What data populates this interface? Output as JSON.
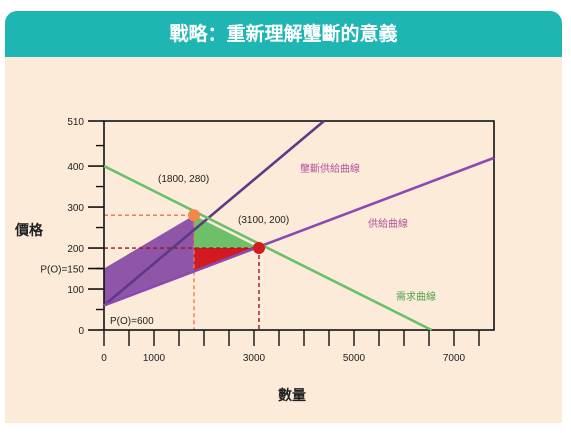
{
  "header": {
    "title": "戰略：重新理解壟斷的意義"
  },
  "chart_data": {
    "type": "line",
    "title": "",
    "xlabel": "數量",
    "ylabel": "價格",
    "xlim": [
      0,
      7800
    ],
    "ylim": [
      0,
      510
    ],
    "x_ticks": [
      0,
      1000,
      3000,
      5000,
      7000
    ],
    "y_ticks": [
      0,
      100,
      200,
      300,
      400,
      510
    ],
    "y_tick_labels": [
      {
        "value": 510,
        "label": "510"
      },
      {
        "value": 400,
        "label": "400"
      },
      {
        "value": 300,
        "label": "300"
      },
      {
        "value": 200,
        "label": "200"
      },
      {
        "value": 150,
        "label": "P(O)=150"
      },
      {
        "value": 100,
        "label": "100"
      },
      {
        "value": 0,
        "label": "0"
      }
    ],
    "series": [
      {
        "name": "壟斷供給曲線",
        "color": "#5e3a86",
        "points": [
          [
            0,
            60
          ],
          [
            4400,
            510
          ]
        ]
      },
      {
        "name": "供給曲線",
        "color": "#8a4bb0",
        "points": [
          [
            0,
            60
          ],
          [
            7800,
            420
          ]
        ]
      },
      {
        "name": "需求曲線",
        "color": "#6bbf6a",
        "points": [
          [
            0,
            400
          ],
          [
            6550,
            0
          ]
        ]
      }
    ],
    "labeled_points": [
      {
        "label": "(1800, 280)",
        "x": 1800,
        "y": 280,
        "color": "#f0884a"
      },
      {
        "label": "(3100, 200)",
        "x": 3100,
        "y": 200,
        "color": "#d11a22"
      }
    ],
    "annotations": [
      {
        "text": "P(O)=600"
      }
    ],
    "colors": {
      "purple_area": "#8e55a8",
      "green_area": "#6dc068",
      "red_area": "#d11a22",
      "orange_guide": "#e8804a",
      "red_guide": "#a0151c"
    }
  }
}
